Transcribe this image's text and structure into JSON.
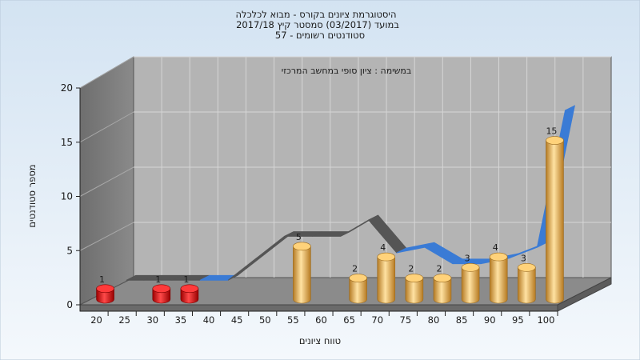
{
  "chart_data": {
    "type": "bar",
    "title_lines": [
      "היסטוגרמת ציונים בקורס - מבוא לכלכלה",
      "במועד  (03/2017)  סמסטר קיץ 2017/18",
      "סטודנטים רשומים - 57"
    ],
    "annotation": "במשימה : ציון סופי במחשב המרכזי",
    "xlabel": "טווח ציונים",
    "ylabel": "מספר סטודנטים",
    "ylim": [
      0,
      20
    ],
    "yticks": [
      "0",
      "5",
      "10",
      "15",
      "20"
    ],
    "xticks": [
      "20",
      "25",
      "30",
      "35",
      "40",
      "45",
      "50",
      "55",
      "60",
      "65",
      "70",
      "75",
      "80",
      "85",
      "90",
      "95",
      "100"
    ],
    "series": [
      {
        "x": [
          20,
          30,
          35,
          55,
          65,
          70,
          75,
          80,
          85,
          90,
          95,
          100
        ],
        "values": [
          1,
          1,
          1,
          5,
          2,
          4,
          2,
          2,
          3,
          4,
          3,
          15
        ],
        "data_labels": [
          "1",
          "1",
          "1",
          "5",
          "2",
          "4",
          "2",
          "2",
          "3",
          "4",
          "3",
          "15"
        ],
        "colors": [
          "red",
          "red",
          "red",
          "orange",
          "orange",
          "orange",
          "orange",
          "orange",
          "orange",
          "orange",
          "orange",
          "orange"
        ]
      }
    ],
    "ribbon": {
      "x": [
        20,
        25,
        30,
        35,
        40,
        45,
        50,
        55,
        60,
        65,
        70,
        75,
        80,
        85,
        90,
        95,
        100
      ],
      "values": [
        0,
        1,
        1,
        1,
        1,
        3,
        5,
        5,
        5,
        6.5,
        3.5,
        4,
        2.5,
        2.5,
        3,
        4,
        16.5
      ]
    },
    "colors": {
      "background_top": "#d3e3f2",
      "background_bottom": "#f3f7fb",
      "back_wall": "#b4b4b4",
      "left_wall": "#7e7e7e",
      "floor": "#8b8b8b",
      "red_bar": "#e01414",
      "orange_bar": "#f0b248",
      "ribbon_blue": "#3a7bd5",
      "ribbon_gray": "#555555"
    },
    "grid": true
  }
}
